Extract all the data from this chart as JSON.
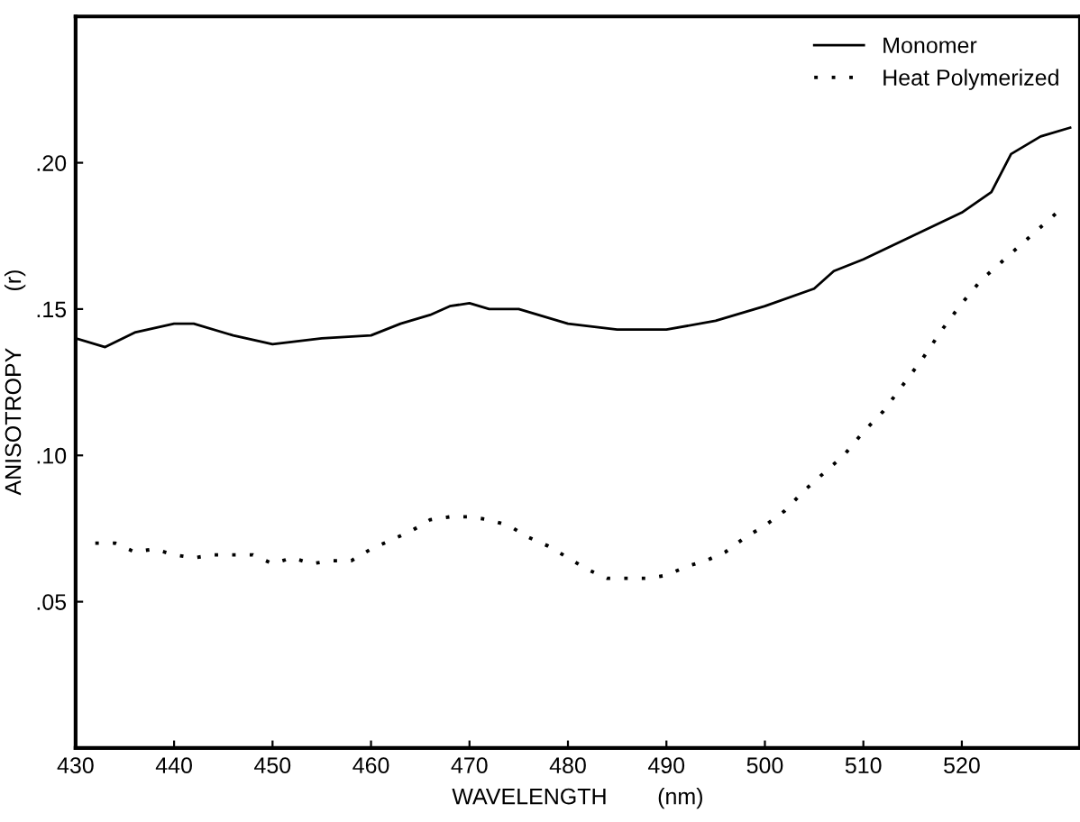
{
  "chart_data": {
    "type": "line",
    "xlabel": "WAVELENGTH        (nm)",
    "ylabel": "ANISOTROPY         (r)",
    "xlim": [
      430,
      532
    ],
    "ylim": [
      0,
      0.25
    ],
    "xticks": [
      430,
      440,
      450,
      460,
      470,
      480,
      490,
      500,
      510,
      520
    ],
    "yticks": [
      {
        "value": 0.05,
        "label": ".05"
      },
      {
        "value": 0.1,
        "label": ".10"
      },
      {
        "value": 0.15,
        "label": ".15"
      },
      {
        "value": 0.2,
        "label": ".20"
      }
    ],
    "grid": false,
    "legend": "top right",
    "series": [
      {
        "name": "Monomer",
        "color": "#000000",
        "line_style": "solid",
        "x": [
          430,
          433,
          436,
          440,
          442,
          446,
          450,
          455,
          460,
          463,
          466,
          468,
          470,
          472,
          475,
          478,
          480,
          485,
          490,
          495,
          500,
          505,
          507,
          510,
          515,
          520,
          523,
          525,
          528,
          531
        ],
        "values": [
          0.14,
          0.137,
          0.142,
          0.145,
          0.145,
          0.141,
          0.138,
          0.14,
          0.141,
          0.145,
          0.148,
          0.151,
          0.152,
          0.15,
          0.15,
          0.147,
          0.145,
          0.143,
          0.143,
          0.146,
          0.151,
          0.157,
          0.163,
          0.167,
          0.175,
          0.183,
          0.19,
          0.203,
          0.209,
          0.212
        ]
      },
      {
        "name": "Heat Polymerized",
        "color": "#000000",
        "line_style": "dotted",
        "x": [
          432,
          434,
          436,
          438,
          440,
          442,
          444,
          446,
          448,
          450,
          452,
          454,
          456,
          458,
          460,
          462,
          464,
          466,
          468,
          470,
          472,
          474,
          476,
          478,
          480,
          482,
          484,
          486,
          488,
          490,
          492,
          494,
          496,
          498,
          500,
          502,
          504,
          506,
          508,
          510,
          512,
          514,
          516,
          518,
          520,
          522,
          524,
          526,
          528,
          530
        ],
        "values": [
          0.07,
          0.07,
          0.067,
          0.068,
          0.066,
          0.065,
          0.066,
          0.066,
          0.066,
          0.063,
          0.065,
          0.063,
          0.064,
          0.064,
          0.068,
          0.071,
          0.074,
          0.078,
          0.079,
          0.079,
          0.078,
          0.076,
          0.072,
          0.069,
          0.065,
          0.061,
          0.058,
          0.058,
          0.058,
          0.059,
          0.062,
          0.064,
          0.067,
          0.072,
          0.076,
          0.081,
          0.088,
          0.094,
          0.1,
          0.108,
          0.115,
          0.124,
          0.133,
          0.143,
          0.152,
          0.16,
          0.166,
          0.172,
          0.178,
          0.184
        ]
      }
    ]
  }
}
